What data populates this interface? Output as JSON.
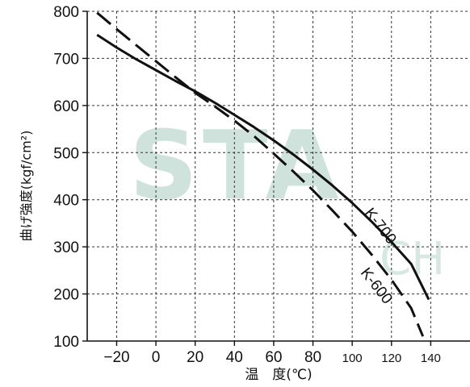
{
  "chart_data": {
    "type": "line",
    "title": "",
    "xlabel": "温　度(℃)",
    "ylabel": "曲げ強度(kgf/cm²)",
    "xlim": [
      -35,
      160
    ],
    "ylim": [
      100,
      800
    ],
    "x_ticks": [
      -20,
      0,
      20,
      40,
      60,
      80,
      100,
      120,
      140
    ],
    "x_tick_labels": [
      "−20",
      "0",
      "20",
      "40",
      "60",
      "80",
      "100",
      "120",
      "140"
    ],
    "y_ticks": [
      100,
      200,
      300,
      400,
      500,
      600,
      700,
      800
    ],
    "y_tick_labels": [
      "100",
      "200",
      "300",
      "400",
      "500",
      "600",
      "700",
      "800"
    ],
    "grid": true,
    "watermark": "STA CH",
    "series": [
      {
        "name": "K-700",
        "style": "solid",
        "color": "#111111",
        "x": [
          -30,
          -20,
          -10,
          0,
          10,
          20,
          30,
          40,
          50,
          60,
          70,
          80,
          90,
          100,
          110,
          120,
          130,
          139
        ],
        "y": [
          750,
          723,
          698,
          675,
          652,
          630,
          606,
          580,
          554,
          526,
          496,
          464,
          430,
          393,
          353,
          310,
          264,
          188
        ]
      },
      {
        "name": "K-600",
        "style": "dashed",
        "color": "#111111",
        "x": [
          -30,
          -20,
          -10,
          0,
          10,
          20,
          30,
          40,
          50,
          60,
          70,
          80,
          90,
          100,
          110,
          120,
          130,
          136
        ],
        "y": [
          797,
          762,
          728,
          694,
          660,
          627,
          598,
          568,
          535,
          498,
          460,
          420,
          377,
          332,
          283,
          230,
          170,
          110
        ]
      }
    ]
  }
}
